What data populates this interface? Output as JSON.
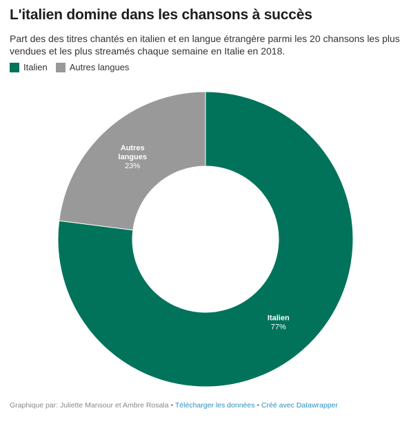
{
  "title": "L'italien domine dans les chansons à succès",
  "subtitle": "Part des des titres chantés en italien et en langue étrangère parmi les 20 chansons les plus vendues et les plus streamés chaque semaine en Italie en 2018.",
  "legend": [
    {
      "label": "Italien",
      "color": "#00735a"
    },
    {
      "label": "Autres langues",
      "color": "#999999"
    }
  ],
  "chart_data": {
    "type": "pie",
    "donut": true,
    "title": "L'italien domine dans les chansons à succès",
    "slices": [
      {
        "label": "Italien",
        "value": 77,
        "value_label": "77%",
        "color": "#00735a"
      },
      {
        "label": "Autres langues",
        "label_lines": [
          "Autres",
          "langues"
        ],
        "value": 23,
        "value_label": "23%",
        "color": "#999999"
      }
    ],
    "legend_position": "top-left"
  },
  "footer": {
    "credit": "Graphique par: Juliette Mansour et Ambre Rosala",
    "separator": "•",
    "download_link": "Télécharger les données",
    "made_with_link": "Créé avec Datawrapper"
  }
}
